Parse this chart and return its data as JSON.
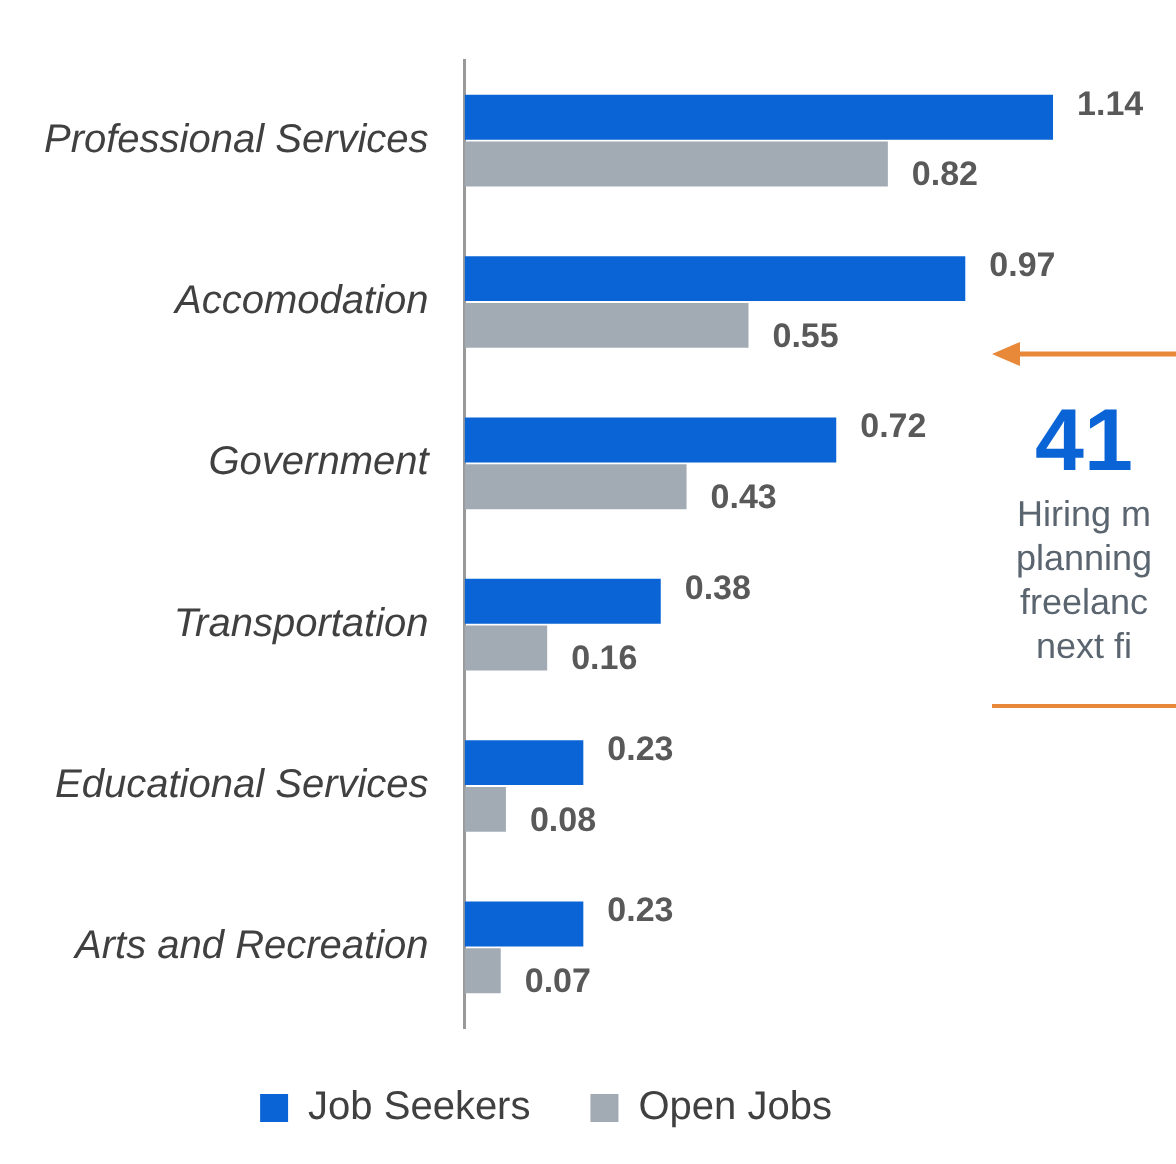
{
  "chart_data": {
    "type": "bar",
    "orientation": "horizontal",
    "categories": [
      "Professional Services",
      "Accomodation",
      "Government",
      "Transportation",
      "Educational Services",
      "Arts and Recreation"
    ],
    "series": [
      {
        "name": "Job Seekers",
        "color": "#0a64d6",
        "values": [
          1.14,
          0.97,
          0.72,
          0.38,
          0.23,
          0.23
        ]
      },
      {
        "name": "Open Jobs",
        "color": "#a2abb3",
        "values": [
          0.82,
          0.55,
          0.43,
          0.16,
          0.08,
          0.07
        ]
      }
    ],
    "data_labels": true,
    "grid": false,
    "legend": "bottom",
    "tick_labels": "y",
    "annotations": [
      "41",
      "Hiring m",
      "planning",
      "freelanc",
      "next fi"
    ]
  }
}
